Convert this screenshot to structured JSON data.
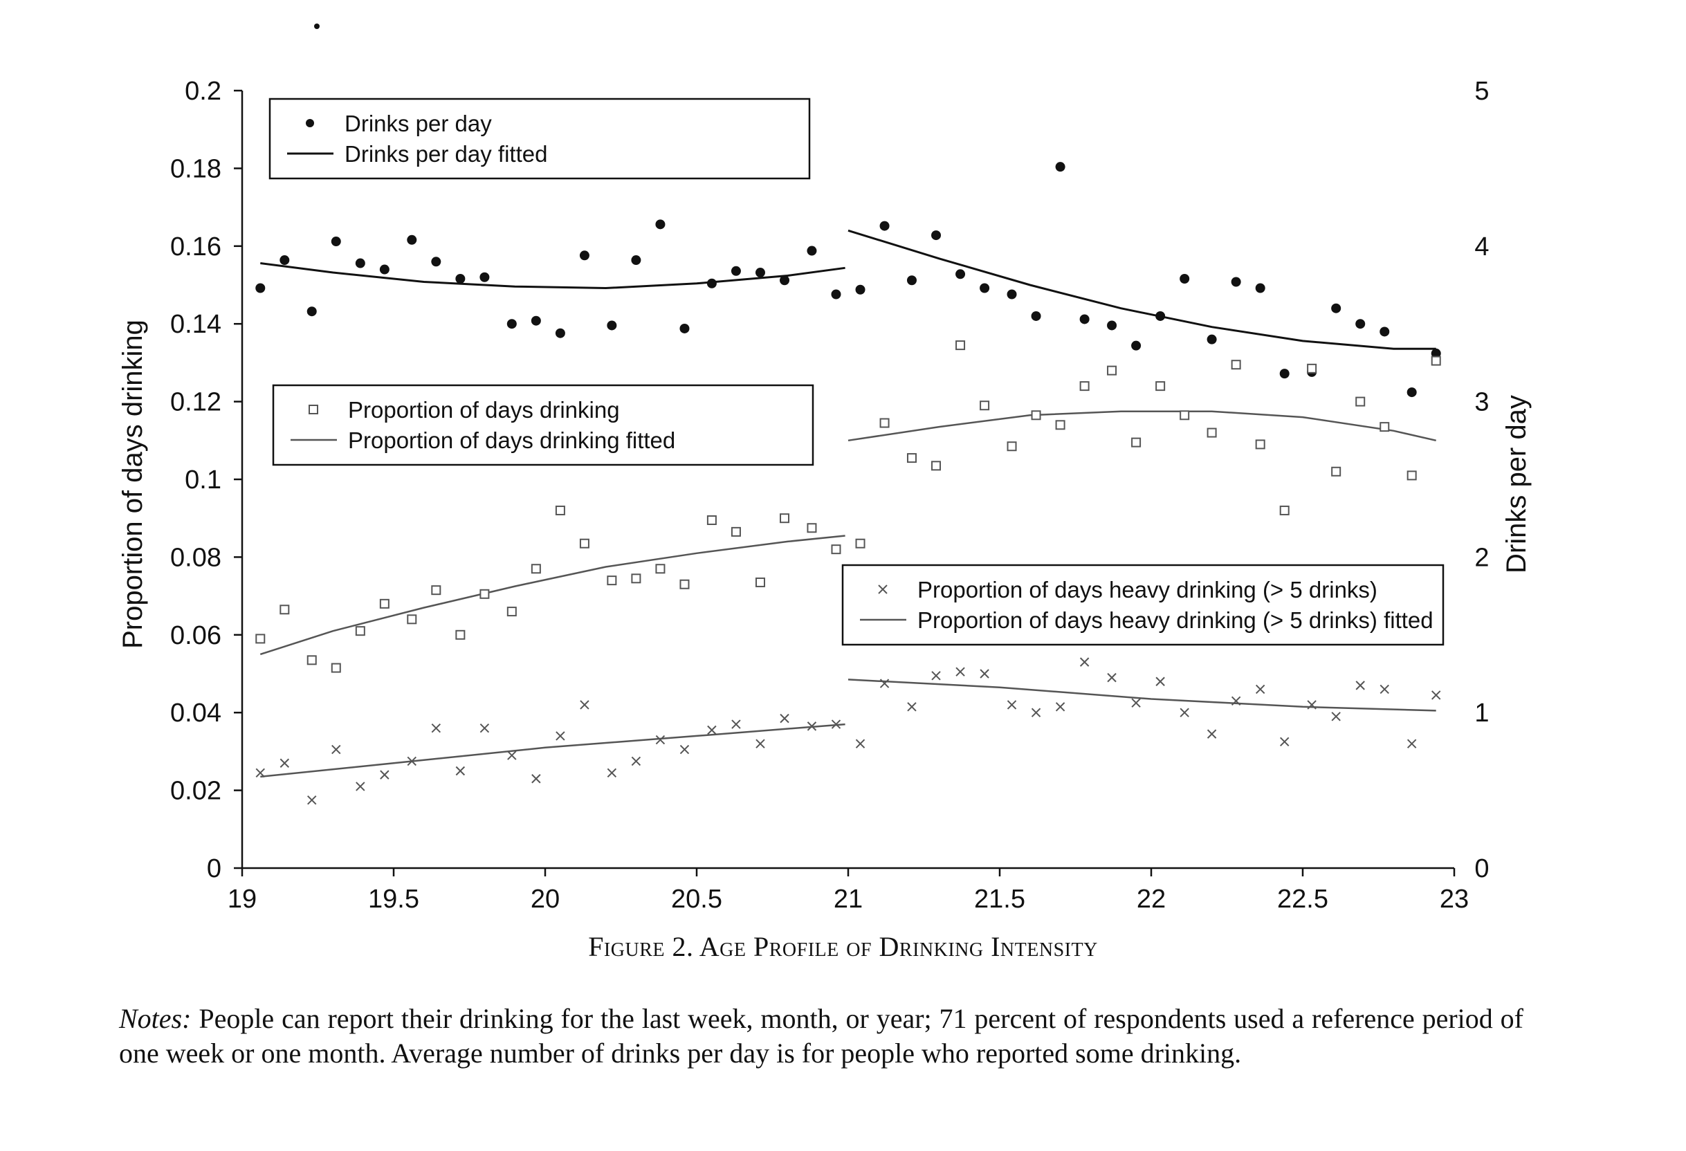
{
  "chart_data": {
    "type": "scatter",
    "title": "",
    "xlabel": "",
    "ylabel": "Proportion of days drinking",
    "y2label": "Drinks per day",
    "xlim": [
      19,
      23
    ],
    "ylim": [
      0,
      0.2
    ],
    "y2lim": [
      0,
      5
    ],
    "x_ticks": [
      "19",
      "19.5",
      "20",
      "20.5",
      "21",
      "21.5",
      "22",
      "22.5",
      "23"
    ],
    "y_ticks": [
      "0",
      "0.02",
      "0.04",
      "0.06",
      "0.08",
      "0.1",
      "0.12",
      "0.14",
      "0.16",
      "0.18",
      "0.2"
    ],
    "y2_ticks": [
      "0",
      "1",
      "2",
      "3",
      "4",
      "5"
    ],
    "grid": false,
    "legends": [
      {
        "position": "top-left",
        "entries": [
          "Drinks per day",
          "Drinks per day fitted"
        ]
      },
      {
        "position": "middle-left",
        "entries": [
          "Proportion of days drinking",
          "Proportion of days drinking fitted"
        ]
      },
      {
        "position": "middle-right",
        "entries": [
          "Proportion of days heavy drinking (> 5 drinks)",
          "Proportion of days heavy drinking (> 5 drinks) fitted"
        ]
      }
    ],
    "x": [
      19.06,
      19.14,
      19.23,
      19.31,
      19.39,
      19.47,
      19.56,
      19.64,
      19.72,
      19.8,
      19.89,
      19.97,
      20.05,
      20.13,
      20.22,
      20.3,
      20.38,
      20.46,
      20.55,
      20.63,
      20.71,
      20.79,
      20.88,
      20.96,
      21.04,
      21.12,
      21.21,
      21.29,
      21.37,
      21.45,
      21.54,
      21.62,
      21.7,
      21.78,
      21.87,
      21.95,
      22.03,
      22.11,
      22.2,
      22.28,
      22.36,
      22.44,
      22.53,
      22.61,
      22.69,
      22.77,
      22.86,
      22.94
    ],
    "series": [
      {
        "name": "Drinks per day",
        "axis": "right",
        "marker": "filled-circle",
        "values": [
          3.73,
          3.91,
          3.58,
          4.03,
          3.89,
          3.85,
          4.04,
          3.9,
          3.79,
          3.8,
          3.5,
          3.52,
          3.44,
          3.94,
          3.49,
          3.91,
          4.14,
          3.47,
          3.76,
          3.84,
          3.83,
          3.78,
          3.97,
          3.69,
          3.72,
          4.13,
          3.78,
          4.07,
          3.82,
          3.73,
          3.69,
          3.55,
          4.51,
          3.53,
          3.49,
          3.36,
          3.55,
          3.79,
          3.4,
          3.77,
          3.73,
          3.18,
          3.19,
          3.6,
          3.5,
          3.45,
          3.06,
          3.31
        ]
      },
      {
        "name": "Drinks per day fitted",
        "axis": "right",
        "marker": "line",
        "segments": [
          {
            "x": [
              19.06,
              19.3,
              19.6,
              19.9,
              20.2,
              20.5,
              20.8,
              20.99
            ],
            "values": [
              3.89,
              3.83,
              3.77,
              3.74,
              3.73,
              3.76,
              3.81,
              3.86
            ]
          },
          {
            "x": [
              21.0,
              21.3,
              21.6,
              21.9,
              22.2,
              22.5,
              22.8,
              22.94
            ],
            "values": [
              4.1,
              3.92,
              3.75,
              3.6,
              3.48,
              3.39,
              3.34,
              3.34
            ]
          }
        ]
      },
      {
        "name": "Proportion of days drinking",
        "axis": "left",
        "marker": "open-square",
        "values": [
          0.059,
          0.0665,
          0.0535,
          0.0515,
          0.061,
          0.068,
          0.064,
          0.0715,
          0.06,
          0.0705,
          0.066,
          0.077,
          0.092,
          0.0835,
          0.074,
          0.0745,
          0.077,
          0.073,
          0.0895,
          0.0865,
          0.0735,
          0.09,
          0.0875,
          0.082,
          0.0835,
          0.1145,
          0.1055,
          0.1035,
          0.1345,
          0.119,
          0.1085,
          0.1165,
          0.114,
          0.124,
          0.128,
          0.1095,
          0.124,
          0.1165,
          0.112,
          0.1295,
          0.109,
          0.092,
          0.1285,
          0.102,
          0.12,
          0.1135,
          0.101,
          0.1305
        ]
      },
      {
        "name": "Proportion of days drinking fitted",
        "axis": "left",
        "marker": "line",
        "segments": [
          {
            "x": [
              19.06,
              19.3,
              19.6,
              19.9,
              20.2,
              20.5,
              20.8,
              20.99
            ],
            "values": [
              0.055,
              0.061,
              0.067,
              0.0725,
              0.0775,
              0.081,
              0.084,
              0.0855
            ]
          },
          {
            "x": [
              21.0,
              21.3,
              21.6,
              21.9,
              22.2,
              22.5,
              22.8,
              22.94
            ],
            "values": [
              0.11,
              0.1135,
              0.1165,
              0.1175,
              0.1175,
              0.116,
              0.1125,
              0.11
            ]
          }
        ]
      },
      {
        "name": "Proportion of days heavy drinking (> 5 drinks)",
        "axis": "left",
        "marker": "x",
        "values": [
          0.0245,
          0.027,
          0.0175,
          0.0305,
          0.021,
          0.024,
          0.0275,
          0.036,
          0.025,
          0.036,
          0.029,
          0.023,
          0.034,
          0.042,
          0.0245,
          0.0275,
          0.033,
          0.0305,
          0.0355,
          0.037,
          0.032,
          0.0385,
          0.0365,
          0.037,
          0.032,
          0.0475,
          0.0415,
          0.0495,
          0.0505,
          0.05,
          0.042,
          0.04,
          0.0415,
          0.053,
          0.049,
          0.0425,
          0.048,
          0.04,
          0.0345,
          0.043,
          0.046,
          0.0325,
          0.042,
          0.039,
          0.047,
          0.046,
          0.032,
          0.0445
        ]
      },
      {
        "name": "Proportion of days heavy drinking (> 5 drinks) fitted",
        "axis": "left",
        "marker": "line",
        "segments": [
          {
            "x": [
              19.06,
              19.5,
              20.0,
              20.5,
              20.99
            ],
            "values": [
              0.0235,
              0.027,
              0.031,
              0.034,
              0.037
            ]
          },
          {
            "x": [
              21.0,
              21.5,
              22.0,
              22.5,
              22.94
            ],
            "values": [
              0.0485,
              0.0465,
              0.0435,
              0.0415,
              0.0405
            ]
          }
        ]
      }
    ]
  },
  "caption": "Figure 2. Age Profile of Drinking Intensity",
  "notes_label": "Notes:",
  "notes_text": " People can report their drinking for the last week, month, or year; 71 percent of respondents used a reference period of one week or one month. Average number of drinks per day is for people who reported some drinking."
}
